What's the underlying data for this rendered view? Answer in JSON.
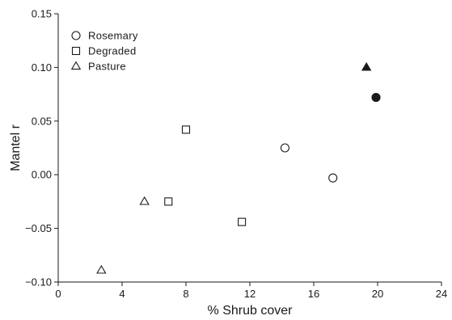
{
  "chart_data": {
    "type": "scatter",
    "xlabel": "% Shrub cover",
    "ylabel": "Mantel r",
    "xlim": [
      0,
      24
    ],
    "ylim": [
      -0.1,
      0.15
    ],
    "x_ticks": [
      "0",
      "4",
      "8",
      "12",
      "16",
      "20",
      "24"
    ],
    "y_ticks": [
      "−0.10",
      "−0.05",
      "0.00",
      "0.05",
      "0.10",
      "0.15"
    ],
    "grid": false,
    "legend_position": "top-left",
    "series": [
      {
        "name": "Rosemary",
        "marker": "circle",
        "points": [
          {
            "x": 14.2,
            "y": 0.025,
            "filled": false
          },
          {
            "x": 17.2,
            "y": -0.003,
            "filled": false
          },
          {
            "x": 19.9,
            "y": 0.072,
            "filled": true
          }
        ]
      },
      {
        "name": "Degraded",
        "marker": "square",
        "points": [
          {
            "x": 8.0,
            "y": 0.042,
            "filled": false
          },
          {
            "x": 6.9,
            "y": -0.025,
            "filled": false
          },
          {
            "x": 11.5,
            "y": -0.044,
            "filled": false
          }
        ]
      },
      {
        "name": "Pasture",
        "marker": "triangle",
        "points": [
          {
            "x": 5.4,
            "y": -0.025,
            "filled": false
          },
          {
            "x": 2.7,
            "y": -0.089,
            "filled": false
          },
          {
            "x": 19.3,
            "y": 0.1,
            "filled": true
          }
        ]
      }
    ]
  }
}
